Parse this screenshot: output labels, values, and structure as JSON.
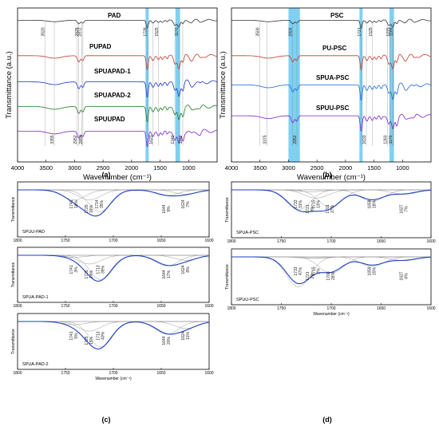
{
  "chart_data": [
    {
      "id": "a",
      "type": "line",
      "panel_label": "(a)",
      "xlabel": "Wavenumber (cm⁻¹)",
      "ylabel": "Transmittance (a.u.)",
      "xlim": [
        4000,
        500
      ],
      "xticks": [
        4000,
        3500,
        3000,
        2500,
        2000,
        1500,
        1000
      ],
      "highlight_bands": [
        [
          1755,
          1700
        ],
        [
          1230,
          1150
        ]
      ],
      "highlight_color": "#55c0ee",
      "series": [
        {
          "name": "PAD",
          "color": "#333333",
          "baseline": 0.08,
          "depth": 0.05
        },
        {
          "name": "PUPAD",
          "color": "#c0392b",
          "baseline": 0.31,
          "depth": 0.09
        },
        {
          "name": "SPUAPAD-1",
          "color": "#1a33cc",
          "baseline": 0.48,
          "depth": 0.1
        },
        {
          "name": "SPUAPAD-2",
          "color": "#1e7a1e",
          "baseline": 0.64,
          "depth": 0.1
        },
        {
          "name": "SPUUPAD",
          "color": "#7a22cc",
          "baseline": 0.8,
          "depth": 0.1
        }
      ],
      "annotations": [
        "3520",
        "2952",
        "2872",
        "3355",
        "2925",
        "2854",
        "1728",
        "1623",
        "1525",
        "1240",
        "1170",
        "1102"
      ]
    },
    {
      "id": "b",
      "type": "line",
      "panel_label": "(b)",
      "xlabel": "Wavenumber (cm⁻¹)",
      "ylabel": "Transmittance (a.u.)",
      "xlim": [
        4000,
        500
      ],
      "xticks": [
        4000,
        3500,
        3000,
        2500,
        2000,
        1500,
        1000
      ],
      "highlight_bands": [
        [
          3000,
          2800
        ],
        [
          1755,
          1700
        ],
        [
          1230,
          1150
        ]
      ],
      "highlight_color": "#55c0ee",
      "series": [
        {
          "name": "PSC",
          "color": "#333333",
          "baseline": 0.08,
          "depth": 0.05
        },
        {
          "name": "PU-PSC",
          "color": "#c0392b",
          "baseline": 0.31,
          "depth": 0.09
        },
        {
          "name": "SPUA-PSC",
          "color": "#1a66dd",
          "baseline": 0.5,
          "depth": 0.1
        },
        {
          "name": "SPUU-PSC",
          "color": "#7a22cc",
          "baseline": 0.7,
          "depth": 0.1
        }
      ],
      "annotations": [
        "3500",
        "3375",
        "2926",
        "2852",
        "1721",
        "1633",
        "1525",
        "1260",
        "1215",
        "1170",
        "1166"
      ]
    },
    {
      "id": "c1",
      "type": "line",
      "panel_label": "",
      "xlim": [
        1800,
        1600
      ],
      "xticks": [
        1800,
        1750,
        1700,
        1650,
        1600
      ],
      "ylabel": "Transmittance",
      "name": "SPUU-PAD",
      "peaks": [
        {
          "wn": "1741",
          "pct": "16%"
        },
        {
          "wn": "1725",
          "pct": "16%"
        },
        {
          "wn": "1714",
          "pct": "35%"
        },
        {
          "wn": "1644",
          "pct": "9%"
        },
        {
          "wn": "1624",
          "pct": "7%"
        }
      ]
    },
    {
      "id": "c2",
      "type": "line",
      "panel_label": "",
      "xlim": [
        1800,
        1600
      ],
      "xticks": [
        1800,
        1750,
        1700,
        1650,
        1600
      ],
      "ylabel": "Transmittance",
      "name": "SPUA-PAD-1",
      "peaks": [
        {
          "wn": "1741",
          "pct": "3%"
        },
        {
          "wn": "1725",
          "pct": "14%"
        },
        {
          "wn": "1713",
          "pct": "39%"
        },
        {
          "wn": "1644",
          "pct": "17%"
        },
        {
          "wn": "1624",
          "pct": "8%"
        }
      ]
    },
    {
      "id": "c3",
      "type": "line",
      "panel_label": "(c)",
      "xlim": [
        1800,
        1600
      ],
      "xticks": [
        1800,
        1750,
        1700,
        1650,
        1600
      ],
      "xlabel": "Wavenumber (cm⁻¹)",
      "ylabel": "Transmittance",
      "name": "SPUA-PAD-2",
      "peaks": [
        {
          "wn": "1741",
          "pct": "5%"
        },
        {
          "wn": "1725",
          "pct": "15%"
        },
        {
          "wn": "1713",
          "pct": "40%"
        },
        {
          "wn": "1644",
          "pct": "20%"
        },
        {
          "wn": "1624",
          "pct": "11%"
        }
      ]
    },
    {
      "id": "d1",
      "type": "line",
      "panel_label": "",
      "xlim": [
        1800,
        1600
      ],
      "xticks": [
        1800,
        1750,
        1700,
        1650,
        1600
      ],
      "ylabel": "Transmittance",
      "name": "SPUA-PSC",
      "peaks": [
        {
          "wn": "1733",
          "pct": "31%"
        },
        {
          "wn": "1721",
          "pct": "3%"
        },
        {
          "wn": "1715",
          "pct": "13%"
        },
        {
          "wn": "1701",
          "pct": "27%"
        },
        {
          "wn": "1659",
          "pct": "18%"
        },
        {
          "wn": "1627",
          "pct": "7%"
        }
      ]
    },
    {
      "id": "d2",
      "type": "line",
      "panel_label": "(d)",
      "xlim": [
        1800,
        1600
      ],
      "xticks": [
        1800,
        1750,
        1700,
        1650,
        1600
      ],
      "xlabel": "Wavenumber (cm⁻¹)",
      "ylabel": "Transmittance",
      "name": "SPUU-PSC",
      "peaks": [
        {
          "wn": "1733",
          "pct": "47%"
        },
        {
          "wn": "1721",
          "pct": "2%"
        },
        {
          "wn": "1715",
          "pct": "2%"
        },
        {
          "wn": "1700",
          "pct": "26%"
        },
        {
          "wn": "1659",
          "pct": "15%"
        },
        {
          "wn": "1627",
          "pct": "6%"
        }
      ]
    }
  ]
}
